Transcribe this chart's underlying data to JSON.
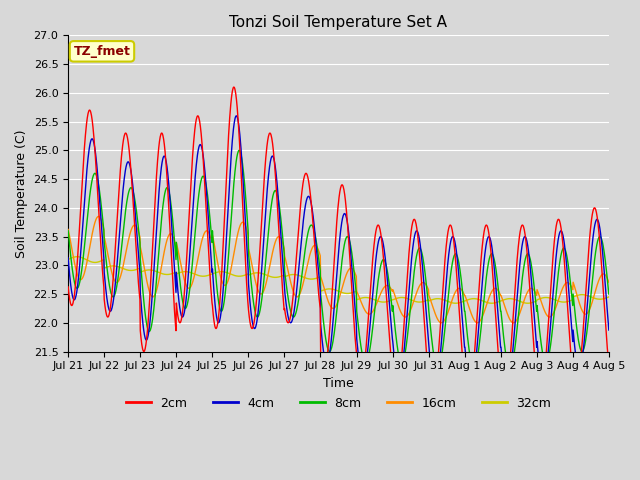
{
  "title": "Tonzi Soil Temperature Set A",
  "xlabel": "Time",
  "ylabel": "Soil Temperature (C)",
  "ylim": [
    21.5,
    27.0
  ],
  "annotation_text": "TZ_fmet",
  "annotation_color": "#8B0000",
  "annotation_bg": "#FFFFCC",
  "annotation_border": "#CCCC00",
  "background_color": "#D8D8D8",
  "plot_bg": "#D8D8D8",
  "legend_labels": [
    "2cm",
    "4cm",
    "8cm",
    "16cm",
    "32cm"
  ],
  "line_colors": [
    "#FF0000",
    "#0000CD",
    "#00BB00",
    "#FF8C00",
    "#CCCC00"
  ],
  "xtick_labels": [
    "Jul 21",
    "Jul 22",
    "Jul 23",
    "Jul 24",
    "Jul 25",
    "Jul 26",
    "Jul 27",
    "Jul 28",
    "Jul 29",
    "Jul 30",
    "Jul 31",
    "Aug 1",
    "Aug 2",
    "Aug 3",
    "Aug 4",
    "Aug 5"
  ],
  "num_days": 15,
  "samples_per_day": 96,
  "mean_2cm": [
    24.0,
    23.7,
    23.4,
    23.8,
    24.0,
    23.6,
    23.3,
    22.8,
    22.3,
    22.3,
    22.2,
    22.2,
    22.2,
    22.3,
    22.5
  ],
  "amp_2cm": [
    1.7,
    1.6,
    1.9,
    1.8,
    2.1,
    1.7,
    1.3,
    1.6,
    1.4,
    1.5,
    1.5,
    1.5,
    1.5,
    1.5,
    1.5
  ],
  "mean_4cm": [
    23.8,
    23.5,
    23.3,
    23.6,
    23.8,
    23.4,
    23.1,
    22.6,
    22.3,
    22.3,
    22.2,
    22.2,
    22.2,
    22.3,
    22.5
  ],
  "amp_4cm": [
    1.4,
    1.3,
    1.6,
    1.5,
    1.8,
    1.5,
    1.1,
    1.3,
    1.2,
    1.3,
    1.3,
    1.3,
    1.3,
    1.3,
    1.3
  ],
  "mean_8cm": [
    23.6,
    23.4,
    23.1,
    23.4,
    23.6,
    23.2,
    22.9,
    22.5,
    22.2,
    22.3,
    22.2,
    22.2,
    22.2,
    22.3,
    22.5
  ],
  "amp_8cm": [
    1.0,
    0.95,
    1.25,
    1.15,
    1.4,
    1.1,
    0.8,
    1.0,
    0.9,
    1.0,
    1.0,
    1.0,
    1.0,
    1.0,
    1.0
  ],
  "mean_16cm": [
    23.3,
    23.2,
    23.0,
    23.1,
    23.2,
    23.0,
    22.9,
    22.6,
    22.4,
    22.4,
    22.3,
    22.3,
    22.3,
    22.4,
    22.5
  ],
  "amp_16cm": [
    0.55,
    0.5,
    0.55,
    0.5,
    0.55,
    0.5,
    0.45,
    0.35,
    0.25,
    0.3,
    0.3,
    0.3,
    0.3,
    0.3,
    0.35
  ],
  "mean_32cm": [
    23.1,
    22.95,
    22.88,
    22.85,
    22.85,
    22.83,
    22.8,
    22.55,
    22.4,
    22.4,
    22.38,
    22.38,
    22.38,
    22.4,
    22.45
  ],
  "amp_32cm": [
    0.05,
    0.04,
    0.04,
    0.04,
    0.04,
    0.04,
    0.04,
    0.04,
    0.04,
    0.04,
    0.04,
    0.04,
    0.04,
    0.04,
    0.04
  ],
  "phase_2cm": 0.35,
  "phase_4cm": 0.42,
  "phase_8cm": 0.5,
  "phase_16cm": 0.6,
  "phase_32cm": 0.0
}
